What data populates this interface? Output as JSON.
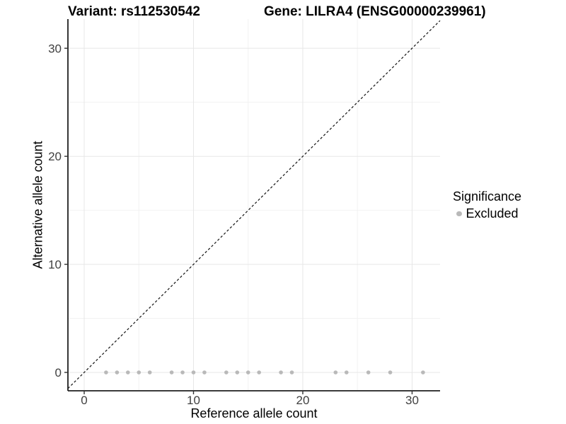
{
  "chart_data": {
    "type": "scatter",
    "title_left": "Variant: rs112530542",
    "title_right": "Gene: LILRA4 (ENSG00000239961)",
    "xlabel": "Reference allele count",
    "ylabel": "Alternative allele count",
    "xlim": [
      -1.49,
      32.56
    ],
    "ylim": [
      -1.7,
      32.7
    ],
    "xticks": [
      0,
      10,
      20,
      30
    ],
    "yticks": [
      0,
      10,
      20,
      30
    ],
    "minor_xticks": [
      5,
      15,
      25
    ],
    "minor_yticks": [
      5,
      15,
      25
    ],
    "grid": "major+minor",
    "reference_line": {
      "style": "dashed",
      "slope": 1,
      "intercept": 0,
      "color": "#1a1a1a"
    },
    "point_radius": 2.8,
    "series": [
      {
        "name": "Excluded",
        "color": "#b9b9b9",
        "x": [
          2,
          3,
          4,
          5,
          6,
          8,
          9,
          10,
          11,
          13,
          14,
          15,
          16,
          18,
          19,
          23,
          24,
          26,
          28,
          31
        ],
        "y": [
          0,
          0,
          0,
          0,
          0,
          0,
          0,
          0,
          0,
          0,
          0,
          0,
          0,
          0,
          0,
          0,
          0,
          0,
          0,
          0
        ]
      }
    ],
    "legend": {
      "title": "Significance",
      "position": "right",
      "entries": [
        {
          "label": "Excluded",
          "color": "#b9b9b9"
        }
      ]
    }
  }
}
